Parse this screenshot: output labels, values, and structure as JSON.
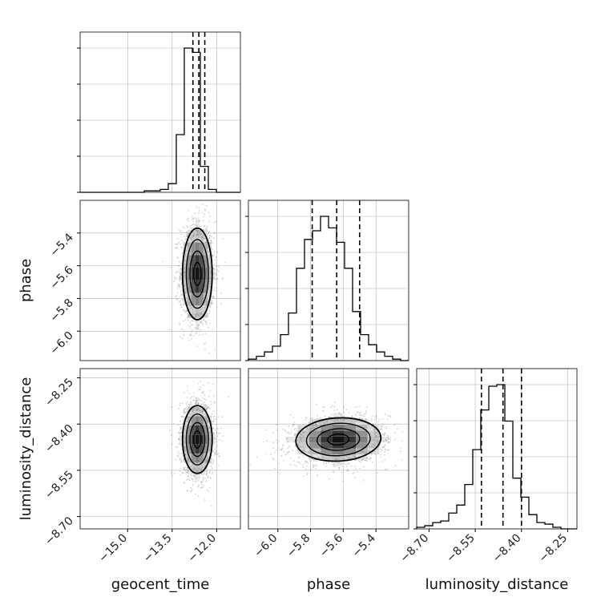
{
  "chart_data": {
    "type": "corner",
    "parameters": [
      {
        "name": "geocent_time",
        "range": [
          -16.6,
          -11.2
        ],
        "ticks": [
          -15.0,
          -13.5,
          -12.0
        ],
        "tick_labels": [
          "−15.0",
          "−13.5",
          "−12.0"
        ],
        "quantiles": [
          -12.8,
          -12.6,
          -12.4
        ],
        "hist": [
          0,
          0,
          0,
          0,
          0,
          0,
          0,
          0,
          1,
          1,
          2,
          6,
          40,
          100,
          97,
          18,
          2,
          0,
          0,
          0
        ]
      },
      {
        "name": "phase",
        "range": [
          -6.18,
          -5.2
        ],
        "ticks": [
          -6.0,
          -5.8,
          -5.6,
          -5.4
        ],
        "tick_labels": [
          "−6.0",
          "−5.8",
          "−5.6",
          "−5.4"
        ],
        "quantiles": [
          -5.79,
          -5.64,
          -5.5
        ],
        "hist": [
          1,
          3,
          6,
          10,
          18,
          33,
          64,
          84,
          90,
          100,
          92,
          82,
          64,
          34,
          18,
          11,
          6,
          3,
          1,
          0
        ]
      },
      {
        "name": "luminosity_distance",
        "range": [
          -8.74,
          -8.22
        ],
        "ticks": [
          -8.7,
          -8.55,
          -8.4,
          -8.25
        ],
        "tick_labels": [
          "−8.70",
          "−8.55",
          "−8.40",
          "−8.25"
        ],
        "quantiles": [
          -8.53,
          -8.46,
          -8.4
        ],
        "hist": [
          1,
          2,
          4,
          5,
          10,
          15,
          28,
          50,
          75,
          90,
          91,
          68,
          32,
          20,
          9,
          4,
          3,
          1,
          0,
          0
        ]
      }
    ],
    "pairs": [
      {
        "x": "geocent_time",
        "y": "phase",
        "center": [
          -12.65,
          -5.65
        ],
        "sigma": [
          0.25,
          0.14
        ],
        "corr": 0.0
      },
      {
        "x": "geocent_time",
        "y": "luminosity_distance",
        "center": [
          -12.65,
          -8.45
        ],
        "sigma": [
          0.25,
          0.055
        ],
        "corr": 0.0
      },
      {
        "x": "phase",
        "y": "luminosity_distance",
        "center": [
          -5.63,
          -8.45
        ],
        "sigma": [
          0.13,
          0.035
        ],
        "corr": 0.15
      }
    ],
    "quantile_levels": [
      0.16,
      0.5,
      0.84
    ],
    "grid": true,
    "colors": {
      "line": "#000000",
      "grid": "#b0b0b0",
      "points": "#7f7f7f"
    }
  }
}
